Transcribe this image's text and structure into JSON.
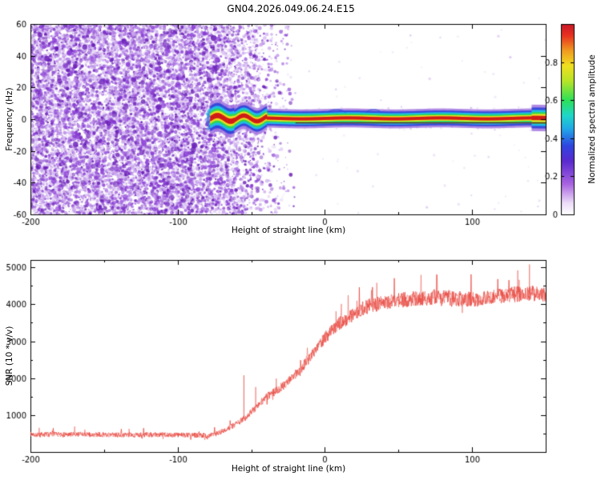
{
  "figure": {
    "title": "GN04.2026.049.06.24.E15",
    "background": "#ffffff"
  },
  "chart_data": [
    {
      "type": "heatmap",
      "name": "spectrogram",
      "xlabel": "Height of straight line (km)",
      "ylabel": "Frequency (Hz)",
      "xlim": [
        -200,
        150
      ],
      "ylim": [
        -60,
        60
      ],
      "x_ticks": [
        -200,
        -100,
        0,
        100
      ],
      "x_minor_step": 50,
      "y_ticks": [
        -60,
        -40,
        -20,
        0,
        20,
        40,
        60
      ],
      "colorbar": {
        "label": "Normalized spectral amplitude",
        "ticks": [
          0,
          0.2,
          0.4,
          0.6,
          0.8
        ],
        "range": [
          0,
          1
        ],
        "stops": [
          [
            0,
            "#ffffff"
          ],
          [
            0.06,
            "#ecdcf8"
          ],
          [
            0.16,
            "#a863e0"
          ],
          [
            0.28,
            "#5a2ad0"
          ],
          [
            0.36,
            "#2f45e0"
          ],
          [
            0.45,
            "#21a8e8"
          ],
          [
            0.52,
            "#1fd8c8"
          ],
          [
            0.6,
            "#2ee058"
          ],
          [
            0.7,
            "#b8e428"
          ],
          [
            0.78,
            "#f0e020"
          ],
          [
            0.86,
            "#f09a20"
          ],
          [
            0.94,
            "#e83020"
          ],
          [
            1,
            "#c81828"
          ]
        ]
      },
      "noise_field": {
        "x_range_km": [
          -200,
          -20
        ],
        "dense_until_km": -90,
        "fade_out_km": -25,
        "palette": [
          "#e2d0f5",
          "#c9a4ee",
          "#a96fe3",
          "#8b3fd6",
          "#6a1fb8"
        ]
      },
      "signal_trace": {
        "onset_km": -78,
        "end_km": 150,
        "center_hz": 0.5,
        "halfwidth_hz": 3.2,
        "wide_until_km": -40,
        "band_colors_core_to_edge": [
          "#d01818",
          "#f0e020",
          "#30d850",
          "#20c0e8",
          "#2840d8",
          "#a478e0"
        ],
        "underline_hz": -2.3,
        "underline_color": "#7a0d0d"
      }
    },
    {
      "type": "line",
      "name": "snr",
      "xlabel": "Height of straight line (km)",
      "ylabel": "SNR (10 * v/v)",
      "xlim": [
        -200,
        150
      ],
      "ylim": [
        0,
        5200
      ],
      "x_ticks": [
        -200,
        -100,
        0,
        100
      ],
      "x_minor_step": 50,
      "y_ticks": [
        1000,
        2000,
        3000,
        4000,
        5000
      ],
      "y_minor_step": 500,
      "series": [
        {
          "name": "SNR",
          "color": "#e8473f",
          "x": [
            -200,
            -180,
            -160,
            -140,
            -120,
            -100,
            -90,
            -80,
            -75,
            -70,
            -65,
            -60,
            -55,
            -50,
            -45,
            -40,
            -35,
            -30,
            -25,
            -20,
            -15,
            -10,
            -5,
            0,
            5,
            10,
            15,
            20,
            25,
            30,
            40,
            50,
            60,
            70,
            80,
            90,
            100,
            110,
            120,
            130,
            140,
            150
          ],
          "y": [
            480,
            470,
            475,
            465,
            470,
            465,
            455,
            450,
            470,
            560,
            650,
            760,
            900,
            1080,
            1280,
            1480,
            1600,
            1750,
            1900,
            2100,
            2320,
            2580,
            2850,
            3100,
            3300,
            3480,
            3620,
            3760,
            3870,
            3950,
            4050,
            4100,
            4150,
            4180,
            4200,
            4150,
            4130,
            4180,
            4230,
            4280,
            4300,
            4250
          ],
          "noise_amplitude": {
            "baseline": 120,
            "transition": 240,
            "plateau": 380
          },
          "spikes": [
            {
              "x": -55,
              "y": 2080
            },
            {
              "x": -47,
              "y": 1760
            },
            {
              "x": 131,
              "y": 4920
            },
            {
              "x": 139,
              "y": 5080
            }
          ]
        }
      ]
    }
  ]
}
